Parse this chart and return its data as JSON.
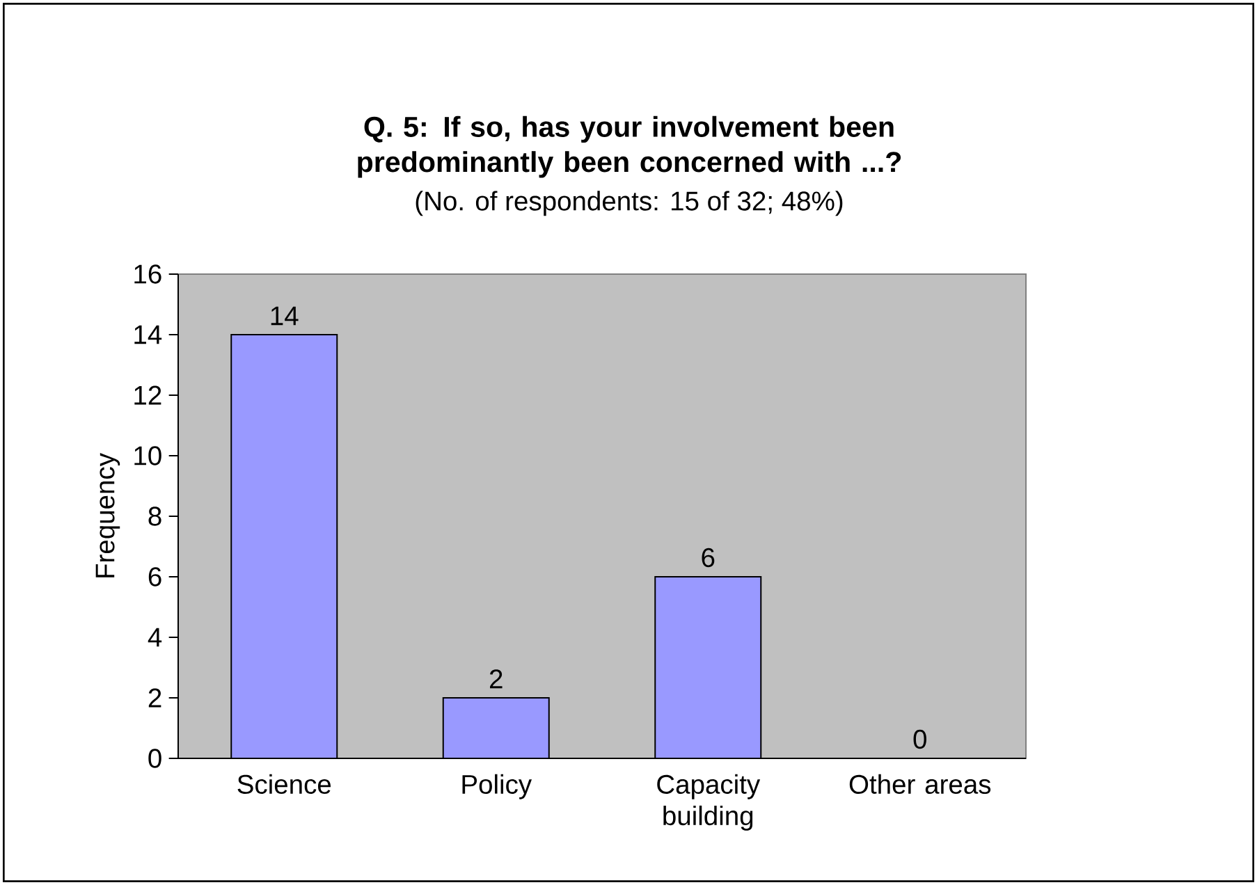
{
  "chart_data": {
    "type": "bar",
    "title": "Q. 5: If so, has your involvement been predominantly been concerned with ...?",
    "subtitle": "(No. of respondents: 15 of 32; 48%)",
    "ylabel": "Frequency",
    "categories": [
      "Science",
      "Policy",
      "Capacity building",
      "Other areas"
    ],
    "values": [
      14,
      2,
      6,
      0
    ],
    "color": "#9999ff",
    "ylim": [
      0,
      16
    ],
    "yticks": [
      0,
      2,
      4,
      6,
      8,
      10,
      12,
      14,
      16
    ],
    "data_labels": true
  }
}
